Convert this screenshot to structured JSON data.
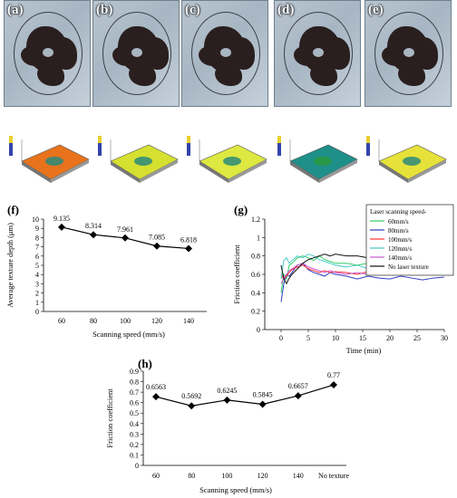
{
  "micro_panels": [
    {
      "label": "(a)"
    },
    {
      "label": "(b)"
    },
    {
      "label": "(c)"
    },
    {
      "label": "(d)"
    },
    {
      "label": "(e)"
    }
  ],
  "surface_colors": [
    "#e8731c",
    "#d6e030",
    "#dde840",
    "#1f8f8a",
    "#e6e23a"
  ],
  "chart_data": [
    {
      "id": "f",
      "panel_label": "(f)",
      "type": "line",
      "x": [
        60,
        80,
        100,
        120,
        140
      ],
      "values": [
        9.135,
        8.314,
        7.961,
        7.085,
        6.818
      ],
      "data_labels": [
        "9.135",
        "8.314",
        "7.961",
        "7.085",
        "6.818"
      ],
      "xlabel": "Scanning speed (mm/s)",
      "ylabel": "Average texture depth (μm)",
      "xticks": [
        "60",
        "80",
        "100",
        "120",
        "140"
      ],
      "yticks": [
        "0",
        "1",
        "2",
        "3",
        "4",
        "5",
        "6",
        "7",
        "8",
        "9",
        "10"
      ],
      "ylim": [
        0,
        10
      ]
    },
    {
      "id": "g",
      "panel_label": "(g)",
      "type": "line",
      "xlabel": "Time  (min)",
      "ylabel": "Friction coefficient",
      "xticks": [
        "0",
        "5",
        "10",
        "15",
        "20",
        "25",
        "30"
      ],
      "yticks": [
        "0",
        "0.2",
        "0.4",
        "0.6",
        "0.8",
        "1",
        "1.2"
      ],
      "xlim": [
        -3,
        30
      ],
      "ylim": [
        0,
        1.2
      ],
      "legend_title": "Laser scanning speed-",
      "series": [
        {
          "name": "60mm/s",
          "color": "#33cc66",
          "x": [
            0,
            0.5,
            1,
            1.5,
            2,
            3,
            4,
            5,
            6,
            7,
            8,
            9,
            10,
            12,
            14,
            16,
            18,
            20,
            22,
            24,
            26,
            28,
            30
          ],
          "y": [
            0.4,
            0.6,
            0.55,
            0.7,
            0.72,
            0.78,
            0.8,
            0.78,
            0.75,
            0.8,
            0.76,
            0.74,
            0.72,
            0.72,
            0.7,
            0.72,
            0.7,
            0.68,
            0.7,
            0.69,
            0.7,
            0.68,
            0.68
          ]
        },
        {
          "name": "80mm/s",
          "color": "#2e3fbf",
          "x": [
            0,
            0.5,
            1,
            1.5,
            2,
            3,
            4,
            5,
            6,
            7,
            8,
            9,
            10,
            12,
            14,
            16,
            18,
            20,
            22,
            24,
            26,
            28,
            30
          ],
          "y": [
            0.3,
            0.5,
            0.6,
            0.58,
            0.62,
            0.7,
            0.72,
            0.65,
            0.62,
            0.6,
            0.58,
            0.62,
            0.6,
            0.58,
            0.55,
            0.58,
            0.56,
            0.55,
            0.58,
            0.56,
            0.54,
            0.56,
            0.57
          ]
        },
        {
          "name": "100mm/s",
          "color": "#ff3333",
          "x": [
            0,
            0.5,
            1,
            1.5,
            2,
            3,
            4,
            5,
            6,
            7,
            8,
            9,
            10,
            12,
            14,
            16,
            18,
            20,
            22,
            24,
            26,
            28,
            30
          ],
          "y": [
            0.6,
            0.55,
            0.58,
            0.62,
            0.65,
            0.68,
            0.7,
            0.66,
            0.64,
            0.62,
            0.64,
            0.62,
            0.63,
            0.62,
            0.6,
            0.63,
            0.62,
            0.6,
            0.62,
            0.6,
            0.62,
            0.61,
            0.62
          ]
        },
        {
          "name": "120mm/s",
          "color": "#44c8c8",
          "x": [
            0,
            0.5,
            1,
            1.5,
            2,
            3,
            4,
            5,
            6,
            7,
            8,
            9,
            10,
            12,
            14,
            16,
            18,
            20,
            22,
            24,
            26,
            28,
            30
          ],
          "y": [
            0.55,
            0.75,
            0.78,
            0.72,
            0.75,
            0.8,
            0.78,
            0.82,
            0.8,
            0.76,
            0.74,
            0.72,
            0.7,
            0.68,
            0.7,
            0.66,
            0.68,
            0.66,
            0.67,
            0.65,
            0.66,
            0.66,
            0.66
          ]
        },
        {
          "name": "140mm/s",
          "color": "#cc55cc",
          "x": [
            0,
            0.5,
            1,
            1.5,
            2,
            3,
            4,
            5,
            6,
            7,
            8,
            9,
            10,
            12,
            14,
            16,
            18,
            20,
            22,
            24,
            26,
            28,
            30
          ],
          "y": [
            0.5,
            0.56,
            0.6,
            0.64,
            0.66,
            0.7,
            0.72,
            0.68,
            0.66,
            0.64,
            0.62,
            0.64,
            0.62,
            0.6,
            0.62,
            0.6,
            0.62,
            0.6,
            0.62,
            0.6,
            0.61,
            0.6,
            0.6
          ]
        },
        {
          "name": "No laser texture",
          "color": "#111111",
          "x": [
            0,
            0.5,
            1,
            1.5,
            2,
            3,
            4,
            5,
            6,
            7,
            8,
            9,
            10,
            12,
            14,
            16,
            18,
            20,
            22,
            24,
            26,
            28,
            30
          ],
          "y": [
            0.7,
            0.55,
            0.5,
            0.56,
            0.6,
            0.66,
            0.72,
            0.76,
            0.78,
            0.8,
            0.82,
            0.8,
            0.82,
            0.8,
            0.8,
            0.78,
            0.8,
            0.78,
            0.79,
            0.78,
            0.79,
            0.78,
            0.78
          ]
        }
      ]
    },
    {
      "id": "h",
      "panel_label": "(h)",
      "type": "line",
      "categories": [
        "60",
        "80",
        "100",
        "120",
        "140",
        "No texture"
      ],
      "values": [
        0.6563,
        0.5692,
        0.6245,
        0.5845,
        0.6657,
        0.77
      ],
      "data_labels": [
        "0.6563",
        "0.5692",
        "0.6245",
        "0.5845",
        "0.6657",
        "0.77"
      ],
      "xlabel": "Scanning speed  (mm/s)",
      "ylabel": "Friction coefficient",
      "yticks": [
        "0",
        "0.1",
        "0.2",
        "0.3",
        "0.4",
        "0.5",
        "0.6",
        "0.7",
        "0.8",
        "0.9"
      ],
      "ylim": [
        0,
        0.9
      ]
    }
  ]
}
